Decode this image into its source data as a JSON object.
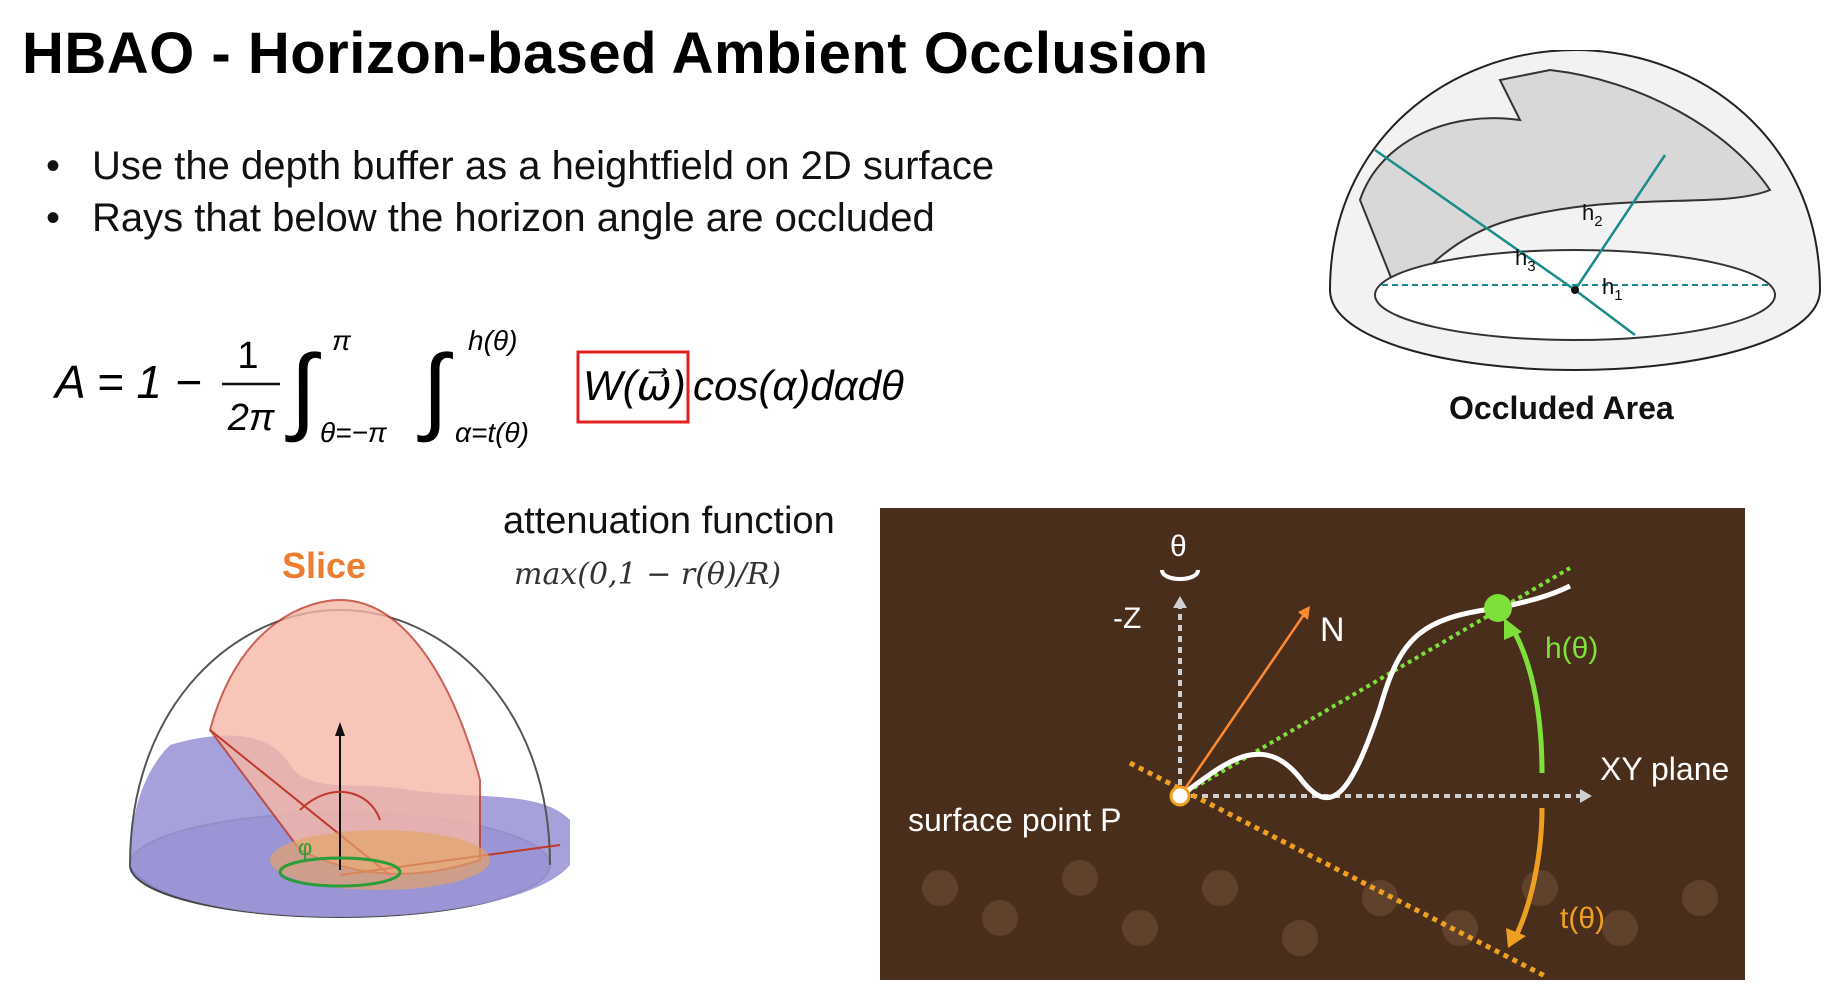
{
  "slide": {
    "title": "HBAO - Horizon-based Ambient Occlusion",
    "bullets": [
      "Use the depth buffer as a heightfield on 2D surface",
      "Rays that below the horizon angle are occluded"
    ]
  },
  "formula": {
    "lhs": "A = 1 −",
    "frac_num": "1",
    "frac_den": "2π",
    "outer_upper": "π",
    "outer_lower": "θ=−π",
    "inner_upper": "h(θ)",
    "inner_lower": "α=t(θ)",
    "highlighted_term": "W(ω⃗)",
    "rest": "cos(α)dαdθ",
    "highlight_color": "#e02020"
  },
  "attenuation": {
    "title": "attenuation function",
    "expression": "max(0,1 − r(θ)/R)"
  },
  "slice_figure": {
    "label": "Slice",
    "label_color": "#ed7d31",
    "phi": "φ"
  },
  "occluded_figure": {
    "caption": "Occluded Area",
    "h1": "h",
    "h1_sub": "1",
    "h2": "h",
    "h2_sub": "2",
    "h3": "h",
    "h3_sub": "3"
  },
  "horizon_diagram": {
    "theta": "θ",
    "neg_z": "-Z",
    "normal": "N",
    "h_theta": "h(θ)",
    "xy_plane": "XY plane",
    "surface_point": "surface point P",
    "t_theta": "t(θ)",
    "background": "#4a2e1c",
    "green": "#7ee03a",
    "orange": "#f0a020"
  }
}
